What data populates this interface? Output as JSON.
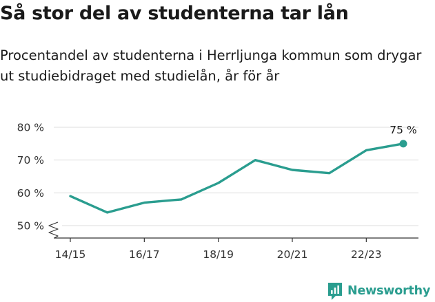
{
  "header": {
    "title": "Så stor del av studenterna tar lån",
    "subtitle": "Procentandel av studenterna i Herrljunga kommun som drygar ut studiebidraget med studielån, år för år"
  },
  "brand": {
    "name": "Newsworthy",
    "icon": "newsworthy-logo-icon",
    "color": "#2a9d8f"
  },
  "chart_data": {
    "type": "line",
    "title": "Så stor del av studenterna tar lån",
    "subtitle": "Procentandel av studenterna i Herrljunga kommun som drygar ut studiebidraget med studielån, år för år",
    "x_tick_labels": [
      "14/15",
      "16/17",
      "18/19",
      "20/21",
      "22/23"
    ],
    "y_tick_labels": [
      "50 %",
      "60 %",
      "70 %",
      "80 %"
    ],
    "y_ticks": [
      50,
      60,
      70,
      80
    ],
    "ylim": [
      50,
      80
    ],
    "y_axis_break": true,
    "grid": true,
    "line_color": "#2a9d8f",
    "series": [
      {
        "x": [
          "14/15",
          "15/16",
          "16/17",
          "17/18",
          "18/19",
          "19/20",
          "20/21",
          "21/22",
          "22/23",
          "23/24"
        ],
        "values": [
          59,
          54,
          57,
          58,
          63,
          70,
          67,
          66,
          73,
          75
        ]
      }
    ],
    "end_label": "75 %"
  }
}
